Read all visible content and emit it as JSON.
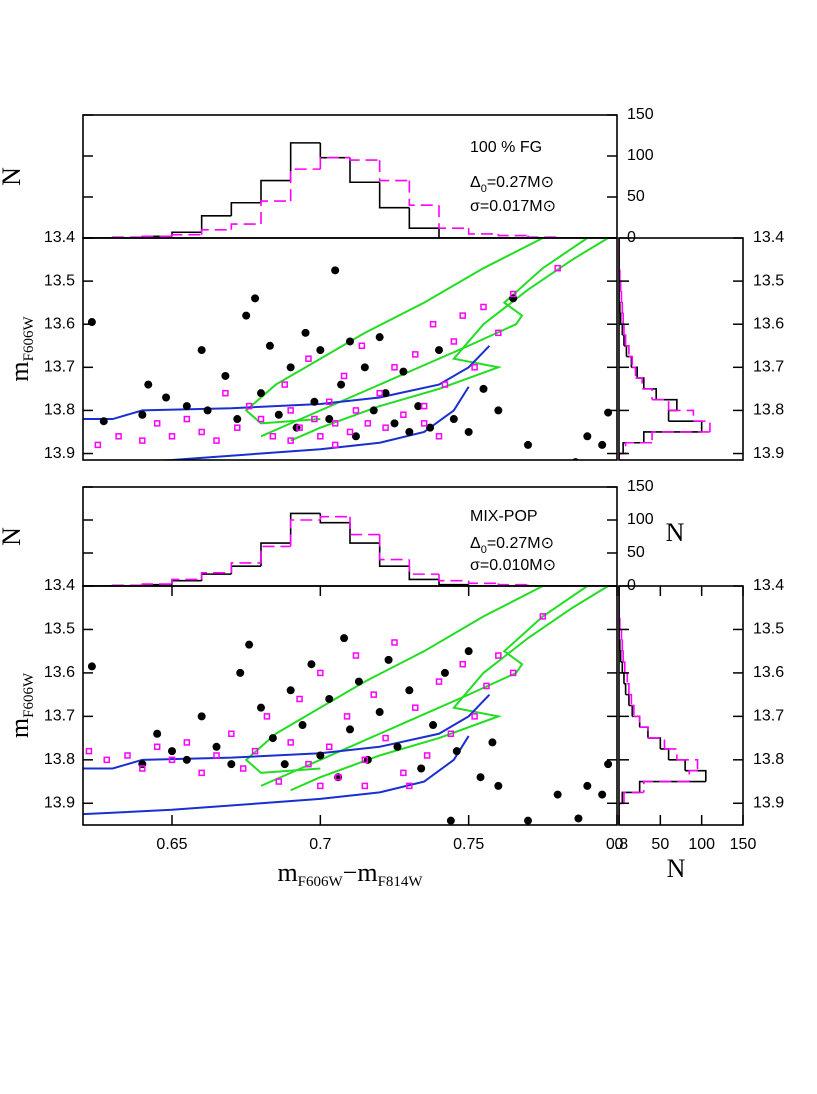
{
  "chart_data": [
    {
      "type": "histogram",
      "orientation": "vertical",
      "xlim": [
        0.62,
        0.8
      ],
      "ylim": [
        0,
        150
      ],
      "yticks": [
        0,
        50,
        100,
        150
      ],
      "y_label": "N",
      "bins": [
        0.62,
        0.63,
        0.64,
        0.65,
        0.66,
        0.67,
        0.68,
        0.69,
        0.7,
        0.71,
        0.72,
        0.73,
        0.74,
        0.75,
        0.76,
        0.77,
        0.78,
        0.79,
        0.8
      ],
      "series": [
        {
          "color": "#000000",
          "style": "solid",
          "values": [
            0,
            0,
            2,
            7,
            27,
            43,
            70,
            116,
            98,
            68,
            37,
            12,
            0,
            0,
            0,
            0,
            0,
            0
          ]
        },
        {
          "color": "#ff00ff",
          "style": "dashed",
          "values": [
            0,
            1,
            2,
            4,
            10,
            17,
            45,
            84,
            98,
            95,
            70,
            40,
            12,
            5,
            3,
            1,
            0,
            0
          ]
        }
      ],
      "annotations": [
        {
          "parts": [
            "100 % FG"
          ]
        },
        {
          "parts": [
            "Δ",
            "0",
            "=0.27M⊙"
          ]
        },
        {
          "parts": [
            "σ=0.017M⊙"
          ]
        }
      ]
    },
    {
      "type": "scatter",
      "xlim": [
        0.62,
        0.8
      ],
      "ylim": [
        13.915,
        13.4
      ],
      "yticks": [
        13.4,
        13.5,
        13.6,
        13.7,
        13.8,
        13.9
      ],
      "y_label": {
        "parts": [
          "m",
          "F606W"
        ]
      },
      "series": [
        {
          "color": "#000000",
          "marker": "circle",
          "x": [
            0.623,
            0.627,
            0.64,
            0.642,
            0.648,
            0.655,
            0.66,
            0.662,
            0.668,
            0.672,
            0.675,
            0.678,
            0.68,
            0.683,
            0.686,
            0.69,
            0.692,
            0.695,
            0.698,
            0.7,
            0.703,
            0.705,
            0.707,
            0.71,
            0.712,
            0.715,
            0.718,
            0.72,
            0.722,
            0.725,
            0.728,
            0.73,
            0.733,
            0.737,
            0.74,
            0.745,
            0.75,
            0.755,
            0.76,
            0.765,
            0.77,
            0.78,
            0.79,
            0.795,
            0.797,
            0.745,
            0.767,
            0.786
          ],
          "y": [
            13.595,
            13.825,
            13.81,
            13.74,
            13.77,
            13.79,
            13.66,
            13.8,
            13.72,
            13.82,
            13.58,
            13.54,
            13.76,
            13.65,
            13.81,
            13.7,
            13.84,
            13.62,
            13.78,
            13.66,
            13.82,
            13.475,
            13.74,
            13.64,
            13.86,
            13.7,
            13.8,
            13.63,
            13.76,
            13.83,
            13.71,
            13.85,
            13.79,
            13.84,
            13.66,
            13.82,
            13.85,
            13.75,
            13.8,
            13.54,
            13.88,
            13.935,
            13.86,
            13.88,
            13.805,
            13.935,
            13.935,
            13.92
          ]
        },
        {
          "color": "#ff00ff",
          "marker": "square",
          "x": [
            0.625,
            0.632,
            0.64,
            0.645,
            0.65,
            0.655,
            0.66,
            0.665,
            0.668,
            0.672,
            0.676,
            0.68,
            0.684,
            0.688,
            0.69,
            0.693,
            0.696,
            0.698,
            0.7,
            0.703,
            0.705,
            0.708,
            0.71,
            0.712,
            0.714,
            0.716,
            0.72,
            0.722,
            0.725,
            0.728,
            0.732,
            0.735,
            0.738,
            0.742,
            0.745,
            0.748,
            0.752,
            0.755,
            0.76,
            0.765,
            0.78,
            0.735,
            0.705,
            0.69,
            0.74
          ],
          "y": [
            13.88,
            13.86,
            13.87,
            13.83,
            13.86,
            13.82,
            13.85,
            13.87,
            13.76,
            13.84,
            13.79,
            13.82,
            13.86,
            13.74,
            13.8,
            13.84,
            13.68,
            13.82,
            13.86,
            13.78,
            13.83,
            13.72,
            13.85,
            13.8,
            13.65,
            13.83,
            13.76,
            13.84,
            13.7,
            13.81,
            13.67,
            13.79,
            13.6,
            13.74,
            13.64,
            13.58,
            13.7,
            13.56,
            13.62,
            13.53,
            13.47,
            13.83,
            13.88,
            13.87,
            13.86
          ]
        }
      ],
      "curves": [
        {
          "color": "#22dd22",
          "x": [
            0.775,
            0.755,
            0.735,
            0.715,
            0.7,
            0.685,
            0.675,
            0.68,
            0.7
          ],
          "y": [
            13.4,
            13.47,
            13.55,
            13.62,
            13.68,
            13.74,
            13.8,
            13.83,
            13.82
          ]
        },
        {
          "color": "#22dd22",
          "x": [
            0.79,
            0.775,
            0.762,
            0.768,
            0.766,
            0.75,
            0.73,
            0.71,
            0.69,
            0.68
          ],
          "y": [
            13.4,
            13.47,
            13.55,
            13.58,
            13.6,
            13.65,
            13.71,
            13.77,
            13.83,
            13.86
          ]
        },
        {
          "color": "#22dd22",
          "x": [
            0.797,
            0.785,
            0.77,
            0.755,
            0.745,
            0.76,
            0.74,
            0.72,
            0.7,
            0.69
          ],
          "y": [
            13.4,
            13.45,
            13.52,
            13.6,
            13.68,
            13.7,
            13.75,
            13.79,
            13.84,
            13.87
          ]
        },
        {
          "color": "#1a2fd0",
          "x": [
            0.62,
            0.63,
            0.64,
            0.67,
            0.7,
            0.72,
            0.74,
            0.75,
            0.757
          ],
          "y": [
            13.82,
            13.82,
            13.8,
            13.795,
            13.785,
            13.77,
            13.74,
            13.7,
            13.65
          ]
        },
        {
          "color": "#1a2fd0",
          "x": [
            0.62,
            0.65,
            0.68,
            0.7,
            0.72,
            0.735,
            0.745,
            0.75
          ],
          "y": [
            13.925,
            13.915,
            13.9,
            13.89,
            13.875,
            13.85,
            13.8,
            13.745
          ]
        }
      ]
    },
    {
      "type": "histogram",
      "orientation": "horizontal",
      "xlim": [
        0,
        150
      ],
      "ylim": [
        13.915,
        13.4
      ],
      "yticks": [
        13.4,
        13.5,
        13.6,
        13.7,
        13.8,
        13.9
      ],
      "bins": [
        13.4,
        13.425,
        13.45,
        13.475,
        13.5,
        13.525,
        13.55,
        13.575,
        13.6,
        13.625,
        13.65,
        13.675,
        13.7,
        13.725,
        13.75,
        13.775,
        13.8,
        13.825,
        13.85,
        13.875,
        13.9,
        13.925,
        13.95
      ],
      "series": [
        {
          "color": "#000000",
          "style": "solid",
          "values": [
            0,
            0,
            0,
            0,
            0,
            0,
            1,
            2,
            4,
            6,
            9,
            15,
            22,
            30,
            45,
            70,
            60,
            100,
            30,
            5,
            0,
            0
          ]
        },
        {
          "color": "#ff00ff",
          "style": "dashed",
          "values": [
            0,
            0,
            0,
            1,
            2,
            3,
            4,
            5,
            6,
            8,
            12,
            16,
            20,
            28,
            40,
            60,
            90,
            110,
            40,
            8,
            0,
            0
          ]
        }
      ]
    },
    {
      "type": "histogram",
      "orientation": "vertical",
      "xlim": [
        0.62,
        0.8
      ],
      "ylim": [
        0,
        150
      ],
      "yticks": [
        0,
        50,
        100,
        150
      ],
      "y_label": "N",
      "y_label_right": "N",
      "bins": [
        0.62,
        0.63,
        0.64,
        0.65,
        0.66,
        0.67,
        0.68,
        0.69,
        0.7,
        0.71,
        0.72,
        0.73,
        0.74,
        0.75,
        0.76,
        0.77,
        0.78,
        0.79,
        0.8
      ],
      "series": [
        {
          "color": "#000000",
          "style": "solid",
          "values": [
            0,
            0,
            2,
            8,
            18,
            30,
            65,
            110,
            96,
            65,
            30,
            10,
            2,
            0,
            0,
            0,
            0,
            0
          ]
        },
        {
          "color": "#ff00ff",
          "style": "dashed",
          "values": [
            0,
            1,
            3,
            10,
            20,
            35,
            60,
            100,
            105,
            78,
            40,
            18,
            8,
            4,
            2,
            0,
            0,
            0
          ]
        }
      ],
      "annotations": [
        {
          "parts": [
            "MIX-POP"
          ]
        },
        {
          "parts": [
            "Δ",
            "0",
            "=0.27M⊙"
          ]
        },
        {
          "parts": [
            "σ=0.010M⊙"
          ]
        }
      ]
    },
    {
      "type": "scatter",
      "xlim": [
        0.62,
        0.8
      ],
      "ylim": [
        13.95,
        13.4
      ],
      "xticks": [
        0.65,
        0.7,
        0.75,
        0.8
      ],
      "yticks": [
        13.4,
        13.5,
        13.6,
        13.7,
        13.8,
        13.9
      ],
      "y_label": {
        "parts": [
          "m",
          "F606W"
        ]
      },
      "x_label": {
        "parts": [
          "m",
          "F606W",
          "−m",
          "F814W"
        ]
      },
      "series": [
        {
          "color": "#000000",
          "marker": "circle",
          "x": [
            0.623,
            0.64,
            0.645,
            0.65,
            0.655,
            0.66,
            0.665,
            0.67,
            0.673,
            0.676,
            0.68,
            0.684,
            0.688,
            0.69,
            0.694,
            0.697,
            0.7,
            0.703,
            0.706,
            0.708,
            0.71,
            0.713,
            0.716,
            0.72,
            0.723,
            0.726,
            0.73,
            0.734,
            0.738,
            0.742,
            0.746,
            0.75,
            0.754,
            0.76,
            0.77,
            0.78,
            0.79,
            0.795,
            0.797,
            0.744,
            0.787,
            0.758
          ],
          "y": [
            13.585,
            13.81,
            13.74,
            13.78,
            13.8,
            13.7,
            13.77,
            13.81,
            13.6,
            13.535,
            13.68,
            13.75,
            13.81,
            13.64,
            13.72,
            13.58,
            13.79,
            13.66,
            13.84,
            13.52,
            13.73,
            13.62,
            13.8,
            13.69,
            13.57,
            13.77,
            13.64,
            13.82,
            13.72,
            13.6,
            13.78,
            13.55,
            13.84,
            13.86,
            13.94,
            13.88,
            13.86,
            13.88,
            13.81,
            13.94,
            13.935,
            13.76
          ]
        },
        {
          "color": "#ff00ff",
          "marker": "square",
          "x": [
            0.622,
            0.628,
            0.635,
            0.64,
            0.645,
            0.65,
            0.655,
            0.66,
            0.665,
            0.67,
            0.674,
            0.678,
            0.682,
            0.686,
            0.69,
            0.693,
            0.696,
            0.7,
            0.703,
            0.706,
            0.709,
            0.712,
            0.715,
            0.718,
            0.722,
            0.725,
            0.728,
            0.732,
            0.736,
            0.74,
            0.744,
            0.748,
            0.752,
            0.756,
            0.76,
            0.765,
            0.775,
            0.7,
            0.715,
            0.73
          ],
          "y": [
            13.78,
            13.8,
            13.79,
            13.82,
            13.77,
            13.8,
            13.76,
            13.83,
            13.79,
            13.74,
            13.82,
            13.78,
            13.7,
            13.85,
            13.76,
            13.66,
            13.81,
            13.6,
            13.77,
            13.84,
            13.7,
            13.56,
            13.8,
            13.65,
            13.75,
            13.53,
            13.83,
            13.68,
            13.79,
            13.62,
            13.74,
            13.58,
            13.7,
            13.63,
            13.56,
            13.6,
            13.47,
            13.86,
            13.86,
            13.86
          ]
        }
      ],
      "curves": [
        {
          "color": "#22dd22",
          "x": [
            0.775,
            0.755,
            0.735,
            0.715,
            0.7,
            0.685,
            0.675,
            0.68,
            0.7
          ],
          "y": [
            13.4,
            13.47,
            13.55,
            13.62,
            13.68,
            13.74,
            13.8,
            13.83,
            13.82
          ]
        },
        {
          "color": "#22dd22",
          "x": [
            0.79,
            0.775,
            0.762,
            0.768,
            0.766,
            0.75,
            0.73,
            0.71,
            0.69,
            0.68
          ],
          "y": [
            13.4,
            13.47,
            13.55,
            13.58,
            13.6,
            13.65,
            13.71,
            13.77,
            13.83,
            13.86
          ]
        },
        {
          "color": "#22dd22",
          "x": [
            0.797,
            0.785,
            0.77,
            0.755,
            0.745,
            0.76,
            0.74,
            0.72,
            0.7,
            0.69
          ],
          "y": [
            13.4,
            13.45,
            13.52,
            13.6,
            13.68,
            13.7,
            13.75,
            13.79,
            13.84,
            13.87
          ]
        },
        {
          "color": "#1a2fd0",
          "x": [
            0.62,
            0.63,
            0.64,
            0.67,
            0.7,
            0.72,
            0.74,
            0.75,
            0.757
          ],
          "y": [
            13.82,
            13.82,
            13.8,
            13.795,
            13.785,
            13.77,
            13.74,
            13.7,
            13.65
          ]
        },
        {
          "color": "#1a2fd0",
          "x": [
            0.62,
            0.65,
            0.68,
            0.7,
            0.72,
            0.735,
            0.745,
            0.75
          ],
          "y": [
            13.925,
            13.915,
            13.9,
            13.89,
            13.875,
            13.85,
            13.8,
            13.745
          ]
        }
      ]
    },
    {
      "type": "histogram",
      "orientation": "horizontal",
      "xlim": [
        0,
        150
      ],
      "ylim": [
        13.95,
        13.4
      ],
      "xticks": [
        0,
        50,
        100,
        150
      ],
      "yticks": [
        13.4,
        13.5,
        13.6,
        13.7,
        13.8,
        13.9
      ],
      "x_label": "N",
      "bins": [
        13.4,
        13.425,
        13.45,
        13.475,
        13.5,
        13.525,
        13.55,
        13.575,
        13.6,
        13.625,
        13.65,
        13.675,
        13.7,
        13.725,
        13.75,
        13.775,
        13.8,
        13.825,
        13.85,
        13.875,
        13.9,
        13.925,
        13.95
      ],
      "series": [
        {
          "color": "#000000",
          "style": "solid",
          "values": [
            0,
            0,
            0,
            0,
            0,
            1,
            2,
            4,
            6,
            8,
            12,
            16,
            25,
            35,
            50,
            60,
            80,
            105,
            25,
            4,
            0,
            0
          ]
        },
        {
          "color": "#ff00ff",
          "style": "dashed",
          "values": [
            0,
            0,
            0,
            1,
            3,
            4,
            5,
            7,
            10,
            12,
            15,
            18,
            25,
            35,
            55,
            70,
            95,
            85,
            30,
            6,
            0,
            0
          ]
        }
      ]
    }
  ]
}
